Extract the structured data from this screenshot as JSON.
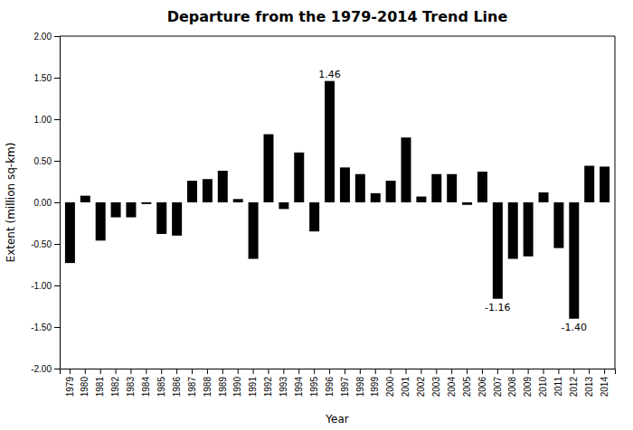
{
  "chart_data": {
    "type": "bar",
    "title": "Departure from the 1979-2014 Trend Line",
    "x_label": "Year",
    "y_label": "Extent (million sq-km)",
    "categories": [
      "1979",
      "1980",
      "1981",
      "1982",
      "1983",
      "1984",
      "1985",
      "1986",
      "1987",
      "1988",
      "1989",
      "1990",
      "1991",
      "1992",
      "1993",
      "1994",
      "1995",
      "1996",
      "1997",
      "1998",
      "1999",
      "2000",
      "2001",
      "2002",
      "2003",
      "2004",
      "2005",
      "2006",
      "2007",
      "2008",
      "2009",
      "2010",
      "2011",
      "2012",
      "2013",
      "2014"
    ],
    "values": [
      -0.73,
      0.08,
      -0.46,
      -0.18,
      -0.18,
      -0.02,
      -0.38,
      -0.4,
      0.26,
      0.28,
      0.38,
      0.04,
      -0.68,
      0.82,
      -0.08,
      0.6,
      -0.35,
      1.46,
      0.42,
      0.34,
      0.11,
      0.26,
      0.78,
      0.07,
      0.34,
      0.34,
      -0.03,
      0.37,
      -1.16,
      -0.68,
      -0.65,
      0.12,
      -0.55,
      -1.4,
      0.44,
      0.43
    ],
    "color": "#000000",
    "ylim": [
      -2.0,
      2.0
    ],
    "yticks": [
      {
        "value": -2.0,
        "label": "-2.00"
      },
      {
        "value": -1.5,
        "label": "-1.50"
      },
      {
        "value": -1.0,
        "label": "-1.00"
      },
      {
        "value": -0.5,
        "label": "-0.50"
      },
      {
        "value": 0.0,
        "label": "0.00"
      },
      {
        "value": 0.5,
        "label": "0.50"
      },
      {
        "value": 1.0,
        "label": "1.00"
      },
      {
        "value": 1.5,
        "label": "1.50"
      },
      {
        "value": 2.0,
        "label": "2.00"
      }
    ],
    "annotations": [
      {
        "text": "1.46",
        "x": "1996",
        "y": 1.46
      },
      {
        "text": "-1.16",
        "x": "2007",
        "y": -1.16
      },
      {
        "text": "-1.40",
        "x": "2012",
        "y": -1.4
      }
    ],
    "grid": false
  }
}
